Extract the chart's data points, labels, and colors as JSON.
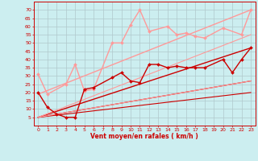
{
  "title": "",
  "xlabel": "Vent moyen/en rafales ( km/h )",
  "ylabel": "",
  "background_color": "#cceef0",
  "grid_color": "#b0c8cc",
  "ylim": [
    0,
    75
  ],
  "xlim": [
    -0.5,
    23.5
  ],
  "yticks": [
    5,
    10,
    15,
    20,
    25,
    30,
    35,
    40,
    45,
    50,
    55,
    60,
    65,
    70
  ],
  "xticks": [
    0,
    1,
    2,
    3,
    4,
    5,
    6,
    7,
    8,
    9,
    10,
    11,
    12,
    13,
    14,
    15,
    16,
    17,
    18,
    19,
    20,
    21,
    22,
    23
  ],
  "dark_series": {
    "x": [
      0,
      1,
      2,
      3,
      4,
      5,
      6,
      8,
      9,
      10,
      11,
      12,
      13,
      14,
      15,
      16,
      17,
      18,
      20,
      21,
      22,
      23
    ],
    "y": [
      20,
      11,
      7,
      5,
      5,
      22,
      23,
      29,
      32,
      27,
      26,
      37,
      37,
      35,
      36,
      35,
      35,
      35,
      40,
      32,
      40,
      47
    ],
    "color": "#cc0000",
    "linewidth": 1.0,
    "markersize": 2.0,
    "marker": "D"
  },
  "light_series": {
    "x": [
      0,
      1,
      3,
      4,
      5,
      6,
      8,
      9,
      10,
      11,
      12,
      14,
      15,
      16,
      17,
      18,
      20,
      22,
      23
    ],
    "y": [
      31,
      19,
      25,
      37,
      21,
      22,
      50,
      50,
      61,
      70,
      57,
      60,
      55,
      56,
      54,
      53,
      59,
      55,
      70
    ],
    "color": "#ff9999",
    "linewidth": 1.0,
    "markersize": 2.0,
    "marker": "D"
  },
  "trend_lines": [
    {
      "x": [
        0,
        23
      ],
      "y": [
        5,
        47
      ],
      "color": "#cc0000",
      "linewidth": 1.0
    },
    {
      "x": [
        0,
        23
      ],
      "y": [
        5,
        27
      ],
      "color": "#cc0000",
      "linewidth": 0.8
    },
    {
      "x": [
        0,
        23
      ],
      "y": [
        5,
        20
      ],
      "color": "#cc0000",
      "linewidth": 0.8
    },
    {
      "x": [
        0,
        23
      ],
      "y": [
        19,
        70
      ],
      "color": "#ff9999",
      "linewidth": 1.0
    },
    {
      "x": [
        0,
        23
      ],
      "y": [
        5,
        55
      ],
      "color": "#ff9999",
      "linewidth": 0.8
    },
    {
      "x": [
        0,
        23
      ],
      "y": [
        5,
        27
      ],
      "color": "#ff9999",
      "linewidth": 0.8
    }
  ],
  "wind_arrow_chars": [
    "↙",
    "↓",
    "↑",
    "←",
    "←",
    "↖",
    "↺",
    "↑",
    "↑",
    "↑",
    "↑",
    "↑",
    "↑",
    "↑",
    "↑",
    "↑",
    "↑",
    "↗",
    "↗",
    "↘",
    "↙",
    "↙",
    "↘",
    "↘"
  ]
}
